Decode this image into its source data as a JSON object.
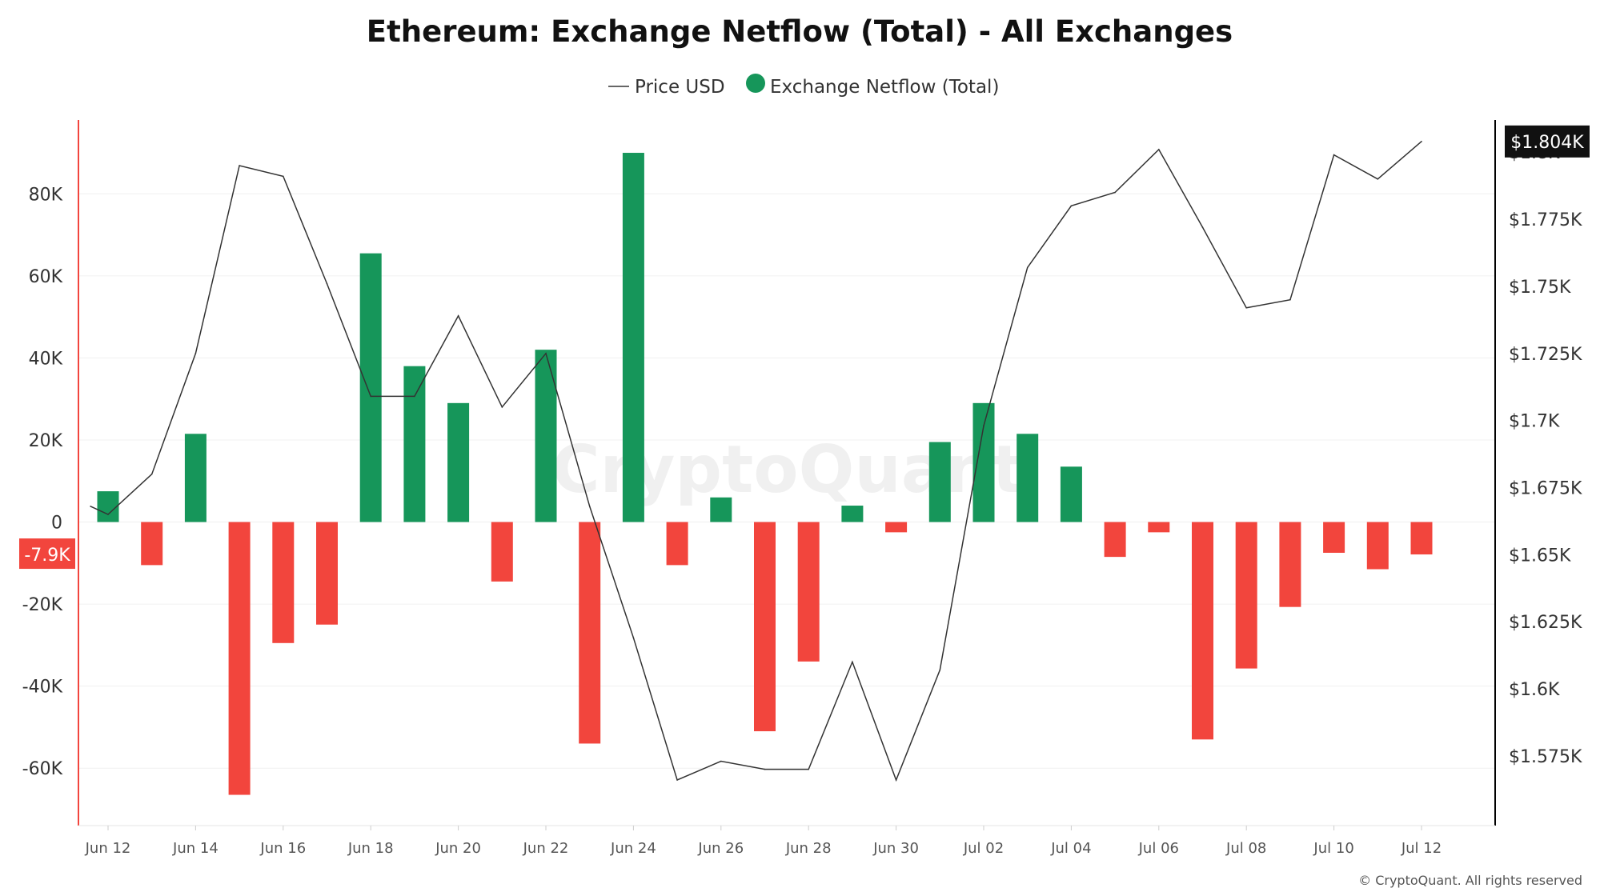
{
  "chart_data": {
    "type": "bar",
    "title": "Ethereum: Exchange Netflow (Total) - All Exchanges",
    "watermark": "CryptoQuant",
    "copyright": "© CryptoQuant. All rights reserved",
    "legend": {
      "placement": "top-center",
      "items": [
        {
          "label": "Price USD",
          "kind": "line",
          "color": "#333333"
        },
        {
          "label": "Exchange Netflow (Total)",
          "kind": "dot",
          "color": "#16965a"
        }
      ]
    },
    "colors": {
      "positive": "#16965a",
      "negative": "#f2453d",
      "price_line": "#333333",
      "left_axis": "#f2453d",
      "right_axis": "#000000"
    },
    "categories": [
      "Jun 12",
      "Jun 13",
      "Jun 14",
      "Jun 15",
      "Jun 16",
      "Jun 17",
      "Jun 18",
      "Jun 19",
      "Jun 20",
      "Jun 21",
      "Jun 22",
      "Jun 23",
      "Jun 24",
      "Jun 25",
      "Jun 26",
      "Jun 27",
      "Jun 28",
      "Jun 29",
      "Jun 30",
      "Jul 01",
      "Jul 02",
      "Jul 03",
      "Jul 04",
      "Jul 05",
      "Jul 06",
      "Jul 07",
      "Jul 08",
      "Jul 09",
      "Jul 10",
      "Jul 11",
      "Jul 12"
    ],
    "x_tick_labels": [
      "Jun 12",
      "Jun 14",
      "Jun 16",
      "Jun 18",
      "Jun 20",
      "Jun 22",
      "Jun 24",
      "Jun 26",
      "Jun 28",
      "Jun 30",
      "Jul 02",
      "Jul 04",
      "Jul 06",
      "Jul 08",
      "Jul 10",
      "Jul 12"
    ],
    "series": [
      {
        "name": "Exchange Netflow (Total)",
        "axis": "left",
        "type": "bar",
        "values": [
          7500,
          -10500,
          21500,
          -66500,
          -29500,
          -25000,
          65500,
          38000,
          29000,
          -14500,
          42000,
          -54000,
          90000,
          -10500,
          6000,
          -51000,
          -34000,
          4000,
          -2500,
          19500,
          29000,
          21500,
          13500,
          -8500,
          -2500,
          -53000,
          -35700,
          -20700,
          -7500,
          -11500,
          -7900
        ]
      },
      {
        "name": "Price USD",
        "axis": "right",
        "type": "line",
        "x": [
          "Jun 11.6",
          "Jun 12",
          "Jun 13",
          "Jun 14",
          "Jun 15",
          "Jun 16",
          "Jun 17",
          "Jun 18",
          "Jun 19",
          "Jun 20",
          "Jun 21",
          "Jun 22",
          "Jun 23",
          "Jun 24",
          "Jun 25",
          "Jun 26",
          "Jun 27",
          "Jun 28",
          "Jun 29",
          "Jun 30",
          "Jul 01",
          "Jul 02",
          "Jul 03",
          "Jul 04",
          "Jul 05",
          "Jul 06",
          "Jul 07",
          "Jul 08",
          "Jul 09",
          "Jul 10",
          "Jul 11",
          "Jul 12"
        ],
        "values": [
          1668,
          1665,
          1680,
          1725,
          1795,
          1791,
          1751,
          1709,
          1709,
          1739,
          1705,
          1725,
          1668,
          1619,
          1566,
          1573,
          1570,
          1570,
          1610,
          1566,
          1607,
          1698,
          1757,
          1780,
          1785,
          1801,
          1772,
          1742,
          1745,
          1799,
          1790,
          1804
        ]
      }
    ],
    "y_left": {
      "ticks": [
        "80K",
        "60K",
        "40K",
        "20K",
        "0",
        "-20K",
        "-40K",
        "-60K"
      ],
      "tick_values": [
        80000,
        60000,
        40000,
        20000,
        0,
        -20000,
        -40000,
        -60000
      ],
      "range": [
        -74000,
        98000
      ]
    },
    "y_right": {
      "ticks": [
        "$1.8K",
        "$1.775K",
        "$1.75K",
        "$1.725K",
        "$1.7K",
        "$1.675K",
        "$1.65K",
        "$1.625K",
        "$1.6K",
        "$1.575K"
      ],
      "tick_values": [
        1800,
        1775,
        1750,
        1725,
        1700,
        1675,
        1650,
        1625,
        1600,
        1575
      ],
      "range": [
        1549,
        1812
      ]
    },
    "current_labels": {
      "left": "-7.9K",
      "right": "$1.804K"
    },
    "grid": "horizontal"
  }
}
